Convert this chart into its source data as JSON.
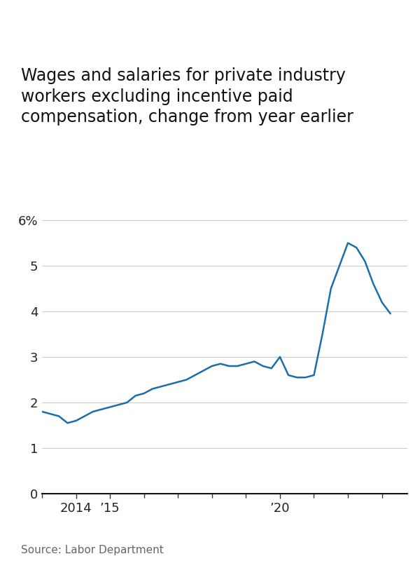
{
  "title": "Wages and salaries for private industry\nworkers excluding incentive paid\ncompensation, change from year earlier",
  "source": "Source: Labor Department",
  "line_color": "#1a6fa8",
  "background_color": "#ffffff",
  "line_width": 1.8,
  "x_values": [
    2013.0,
    2013.25,
    2013.5,
    2013.75,
    2014.0,
    2014.25,
    2014.5,
    2014.75,
    2015.0,
    2015.25,
    2015.5,
    2015.75,
    2016.0,
    2016.25,
    2016.5,
    2016.75,
    2017.0,
    2017.25,
    2017.5,
    2017.75,
    2018.0,
    2018.25,
    2018.5,
    2018.75,
    2019.0,
    2019.25,
    2019.5,
    2019.75,
    2020.0,
    2020.25,
    2020.5,
    2020.75,
    2021.0,
    2021.25,
    2021.5,
    2021.75,
    2022.0,
    2022.25,
    2022.5,
    2022.75,
    2023.0,
    2023.25
  ],
  "y_values": [
    1.8,
    1.75,
    1.7,
    1.55,
    1.6,
    1.7,
    1.8,
    1.85,
    1.9,
    1.95,
    2.0,
    2.15,
    2.2,
    2.3,
    2.35,
    2.4,
    2.45,
    2.5,
    2.6,
    2.7,
    2.8,
    2.85,
    2.8,
    2.8,
    2.85,
    2.9,
    2.8,
    2.75,
    3.0,
    2.6,
    2.55,
    2.55,
    2.6,
    3.5,
    4.5,
    5.0,
    5.5,
    5.4,
    5.1,
    4.6,
    4.2,
    3.95
  ],
  "yticks": [
    0,
    1,
    2,
    3,
    4,
    5,
    6
  ],
  "ytick_labels": [
    "0",
    "1",
    "2",
    "3",
    "4",
    "5",
    "6%"
  ],
  "xlim": [
    2013.0,
    2023.75
  ],
  "ylim": [
    0,
    6.4
  ],
  "xtick_positions": [
    2014,
    2015,
    2020
  ],
  "xtick_labels": [
    "2014",
    "’15",
    "’20"
  ],
  "minor_xtick_positions": [
    2013,
    2014,
    2015,
    2016,
    2017,
    2018,
    2019,
    2020,
    2021,
    2022,
    2023
  ],
  "title_fontsize": 17,
  "tick_fontsize": 13,
  "source_fontsize": 11
}
